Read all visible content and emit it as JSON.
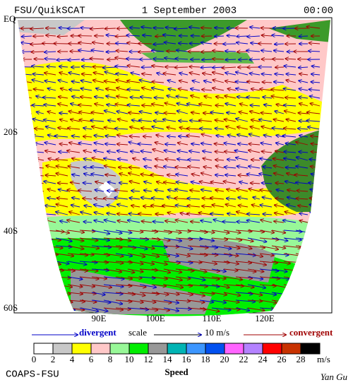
{
  "header": {
    "left": "FSU/QuikSCAT",
    "center": "1 September 2003",
    "right": "00:00"
  },
  "map": {
    "lat_labels": [
      "EQ",
      "20S",
      "40S",
      "60S"
    ],
    "lon_labels": [
      "90E",
      "100E",
      "110E",
      "120E"
    ]
  },
  "legend": {
    "divergent": "divergent",
    "scale": "scale",
    "scale_value": "10 m/s",
    "convergent": "convergent"
  },
  "colorbar": {
    "ticks": [
      0,
      2,
      4,
      6,
      8,
      10,
      12,
      14,
      16,
      18,
      20,
      22,
      24,
      26,
      28
    ],
    "unit": "m/s",
    "label": "Speed",
    "colors": [
      "#ffffff",
      "#c8c8c8",
      "#ffff00",
      "#ffc8c8",
      "#98f898",
      "#00ee00",
      "#989898",
      "#00b4b4",
      "#3c96ff",
      "#0050f0",
      "#ff64ff",
      "#b482ff",
      "#ff0000",
      "#c83200",
      "#000000"
    ]
  },
  "footer": {
    "left": "COAPS-FSU",
    "right": "Yan Gu"
  }
}
